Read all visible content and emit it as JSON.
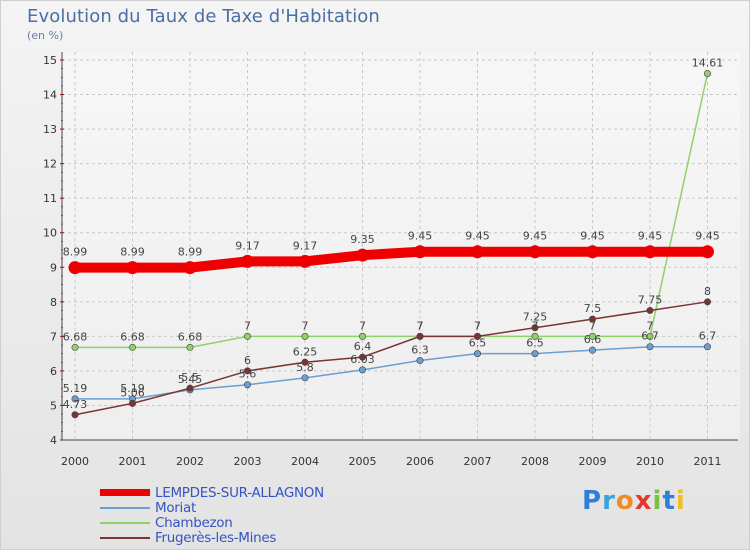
{
  "title": "Evolution du Taux de Taxe d'Habitation",
  "subtitle": "(en %)",
  "logo": {
    "letters": [
      "P",
      "r",
      "o",
      "x",
      "i",
      "t",
      "i"
    ],
    "colors": [
      "#2f7fd8",
      "#3aa3d8",
      "#f08a24",
      "#e23a2a",
      "#7cc242",
      "#2f7fd8",
      "#f0c020"
    ]
  },
  "chart_data": {
    "type": "line",
    "x": [
      "2000",
      "2001",
      "2002",
      "2003",
      "2004",
      "2005",
      "2006",
      "2007",
      "2008",
      "2009",
      "2010",
      "2011"
    ],
    "ylim": [
      4,
      15
    ],
    "yticks": [
      "4",
      "5",
      "6",
      "7",
      "8",
      "9",
      "10",
      "11",
      "12",
      "13",
      "14",
      "15"
    ],
    "grid": true,
    "legend_position": "bottom-left",
    "series": [
      {
        "name": "LEMPDES-SUR-ALLAGNON",
        "color": "#ee0000",
        "values": [
          8.99,
          8.99,
          8.99,
          9.17,
          9.17,
          9.35,
          9.45,
          9.45,
          9.45,
          9.45,
          9.45,
          9.45
        ],
        "labels": [
          "8.99",
          "8.99",
          "8.99",
          "9.17",
          "9.17",
          "9.35",
          "9.45",
          "9.45",
          "9.45",
          "9.45",
          "9.45",
          "9.45"
        ]
      },
      {
        "name": "Moriat",
        "color": "#6b9fd0",
        "values": [
          5.19,
          5.19,
          5.45,
          5.6,
          5.8,
          6.03,
          6.3,
          6.5,
          6.5,
          6.6,
          6.7,
          6.7
        ],
        "labels": [
          "5.19",
          "5.19",
          "5.45",
          "5.6",
          "5.8",
          "6.03",
          "6.3",
          "6.5",
          "6.5",
          "6.6",
          "6.7",
          "6.7"
        ]
      },
      {
        "name": "Chambezon",
        "color": "#8fd26a",
        "values": [
          6.68,
          6.68,
          6.68,
          7,
          7,
          7,
          7,
          7,
          7,
          7,
          7,
          14.61
        ],
        "labels": [
          "6.68",
          "6.68",
          "6.68",
          "7",
          "7",
          "7",
          "7",
          "7",
          "7",
          "7",
          "7",
          "14.61"
        ]
      },
      {
        "name": "Frugerès-les-Mines",
        "color": "#7a3434",
        "values": [
          4.73,
          5.06,
          5.5,
          6,
          6.25,
          6.4,
          7,
          7,
          7.25,
          7.5,
          7.75,
          8
        ],
        "labels": [
          "4.73",
          "5.06",
          "5.5",
          "6",
          "6.25",
          "6.4",
          "7",
          "7",
          "7.25",
          "7.5",
          "7.75",
          "8"
        ]
      }
    ]
  }
}
